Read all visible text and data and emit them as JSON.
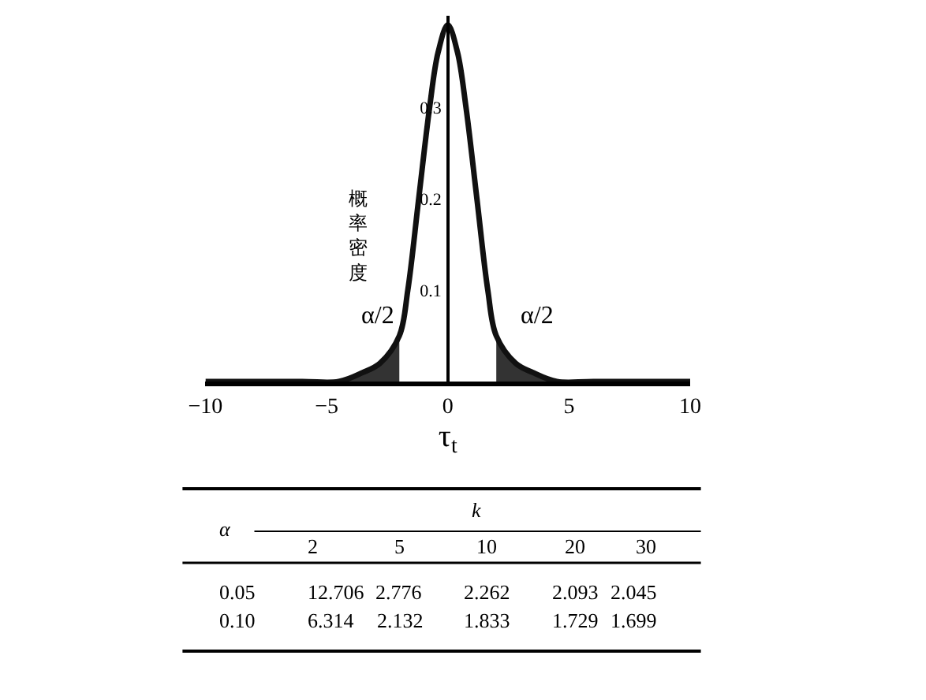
{
  "chart_data": [
    {
      "type": "line",
      "xlabel": "τ$_{t}$",
      "ylabel": "概率密度",
      "xlim": [
        -10,
        10
      ],
      "ylim": [
        0,
        0.4
      ],
      "xticks": [
        -10,
        -5,
        0,
        5,
        10
      ],
      "yticks": [
        0.1,
        0.2,
        0.3
      ],
      "marker": "none",
      "line_style": "solid",
      "series": [
        {
          "type": "area",
          "color": "#333333",
          "x": [
            -4.5,
            -3.5,
            -2.8,
            -2
          ],
          "values": [
            0,
            0.01,
            0.02,
            0.05
          ]
        },
        {
          "type": "area",
          "color": "#333333",
          "x": [
            2,
            2.8,
            3.5,
            4.5
          ],
          "values": [
            0.05,
            0.02,
            0.01,
            0
          ]
        },
        {
          "type": "line",
          "color": "#111111",
          "x": [
            -10,
            -6,
            -4.5,
            -3.5,
            -2.8,
            -2,
            -1.65,
            -1.2,
            -0.75,
            -0.4,
            0,
            0.4,
            0.75,
            1.2,
            1.65,
            2,
            2.8,
            3.5,
            4.5,
            6,
            10
          ],
          "values": [
            0,
            0,
            0,
            0.01,
            0.02,
            0.05,
            0.1,
            0.2,
            0.3,
            0.36,
            0.39,
            0.36,
            0.3,
            0.2,
            0.1,
            0.05,
            0.02,
            0.01,
            0,
            0,
            0
          ]
        }
      ],
      "annotations": [
        "α/2",
        "α/2"
      ]
    },
    {
      "type": "other",
      "xlabel": "k",
      "ylabel": "α",
      "categories": [
        "2",
        "5",
        "10",
        "20",
        "30"
      ],
      "y_categories": [
        "0.05",
        "0.10"
      ],
      "cell_labels": [
        [
          "12.706",
          "2.776",
          "2.262",
          "2.093",
          "2.045"
        ],
        [
          "6.314",
          "2.132",
          "1.833",
          "1.729",
          "1.699"
        ]
      ]
    }
  ]
}
